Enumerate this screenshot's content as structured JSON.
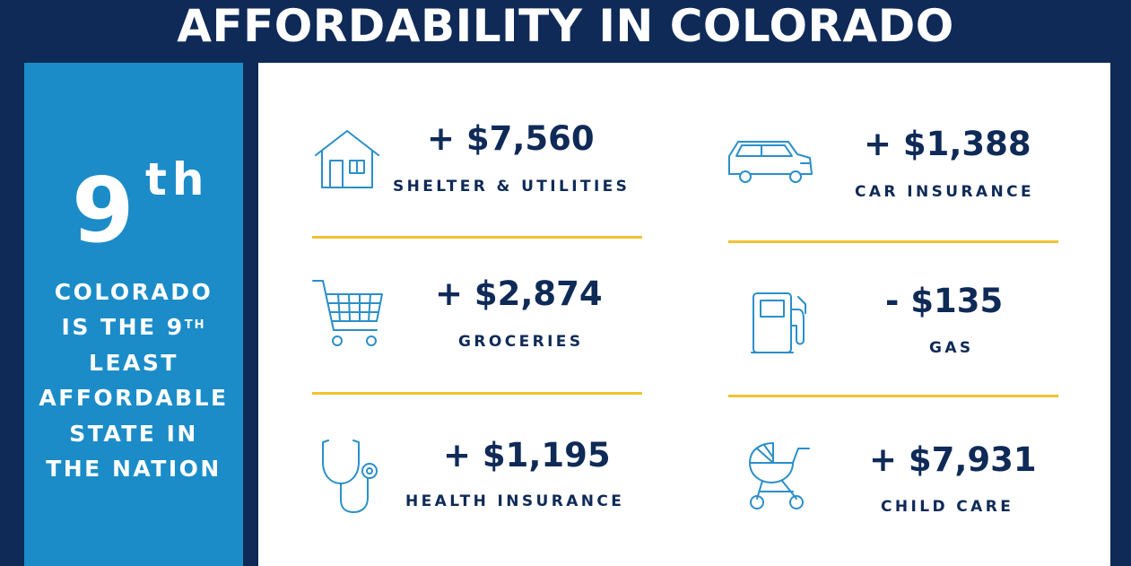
{
  "title": "AFFORDABILITY IN COLORADO",
  "rank": {
    "number": "9",
    "suffix": "th"
  },
  "side_text": {
    "line1": "COLORADO",
    "line2_prefix": "IS THE 9",
    "line2_sup": "TH",
    "line3": "LEAST",
    "line4": "AFFORDABLE",
    "line5": "STATE IN",
    "line6": "THE NATION"
  },
  "colors": {
    "navy": "#0f2a57",
    "blue": "#1b8cc8",
    "divider": "#f2c12e",
    "icon": "#2a8fc9"
  },
  "items": [
    {
      "icon": "house-icon",
      "amount": "+ $7,560",
      "label": "SHELTER & UTILITIES"
    },
    {
      "icon": "car-icon",
      "amount": "+ $1,388",
      "label": "CAR INSURANCE"
    },
    {
      "icon": "shopping-cart-icon",
      "amount": "+ $2,874",
      "label": "GROCERIES"
    },
    {
      "icon": "gas-pump-icon",
      "amount": "- $135",
      "label": "GAS"
    },
    {
      "icon": "stethoscope-icon",
      "amount": "+ $1,195",
      "label": "HEALTH INSURANCE"
    },
    {
      "icon": "stroller-icon",
      "amount": "+ $7,931",
      "label": "CHILD CARE"
    }
  ]
}
